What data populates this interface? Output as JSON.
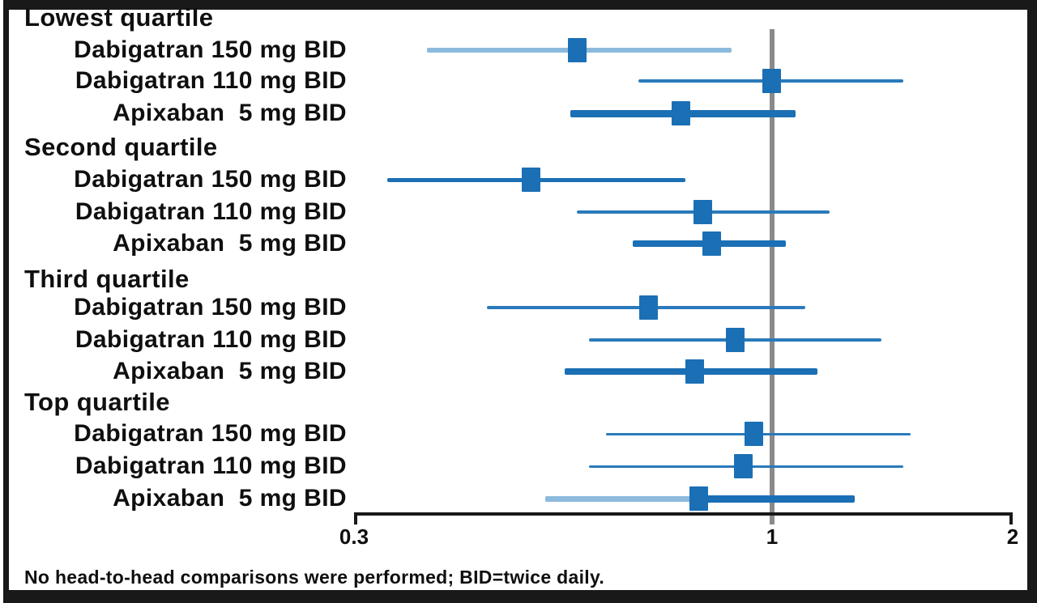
{
  "chart_data": {
    "type": "forest",
    "title": "",
    "x_scale": "log",
    "x_min": 0.3,
    "x_max": 2,
    "x_ticks": [
      {
        "value": 0.3,
        "label": "0.3"
      },
      {
        "value": 1,
        "label": "1"
      },
      {
        "value": 2,
        "label": "2"
      }
    ],
    "ref_line_value": 1,
    "footnote": "No head-to-head comparisons were performed; BID=twice daily.",
    "colors": {
      "marker": "#1b6fb5",
      "line_dark": "#1b6fb5",
      "line_medium": "#2a7abc",
      "line_light": "#8cbadd",
      "ref_line": "#8a8a8a",
      "axis": "#191919",
      "text": "#0f0f0f",
      "frame": "#191919"
    },
    "groups": [
      {
        "label": "Lowest quartile",
        "rows": [
          {
            "label": "Dabigatran 150 mg BID",
            "est": 0.57,
            "lo": 0.37,
            "hi": 0.89,
            "line": "light",
            "weight": 6
          },
          {
            "label": "Dabigatran 110 mg BID",
            "est": 1.0,
            "lo": 0.68,
            "hi": 1.46,
            "line": "medium",
            "weight": 4
          },
          {
            "label": "Apixaban  5 mg BID",
            "est": 0.77,
            "lo": 0.56,
            "hi": 1.07,
            "line": "dark",
            "weight": 9
          }
        ]
      },
      {
        "label": "Second quartile",
        "rows": [
          {
            "label": "Dabigatran 150 mg BID",
            "est": 0.5,
            "lo": 0.33,
            "hi": 0.78,
            "line": "dark",
            "weight": 5
          },
          {
            "label": "Dabigatran 110 mg BID",
            "est": 0.82,
            "lo": 0.57,
            "hi": 1.18,
            "line": "medium",
            "weight": 4
          },
          {
            "label": "Apixaban  5 mg BID",
            "est": 0.84,
            "lo": 0.67,
            "hi": 1.04,
            "line": "dark",
            "weight": 8
          }
        ]
      },
      {
        "label": "Third quartile",
        "rows": [
          {
            "label": "Dabigatran 150 mg BID",
            "est": 0.7,
            "lo": 0.44,
            "hi": 1.1,
            "line": "medium",
            "weight": 4
          },
          {
            "label": "Dabigatran 110 mg BID",
            "est": 0.9,
            "lo": 0.59,
            "hi": 1.37,
            "line": "medium",
            "weight": 4
          },
          {
            "label": "Apixaban  5 mg BID",
            "est": 0.8,
            "lo": 0.55,
            "hi": 1.14,
            "line": "dark",
            "weight": 8
          }
        ]
      },
      {
        "label": "Top quartile",
        "rows": [
          {
            "label": "Dabigatran 150 mg BID",
            "est": 0.95,
            "lo": 0.62,
            "hi": 1.49,
            "line": "medium",
            "weight": 3
          },
          {
            "label": "Dabigatran 110 mg BID",
            "est": 0.92,
            "lo": 0.59,
            "hi": 1.46,
            "line": "medium",
            "weight": 3
          },
          {
            "label": "Apixaban  5 mg BID",
            "est": 0.81,
            "lo": 0.52,
            "hi": 1.27,
            "line": "split",
            "weight": 9
          }
        ]
      }
    ]
  }
}
